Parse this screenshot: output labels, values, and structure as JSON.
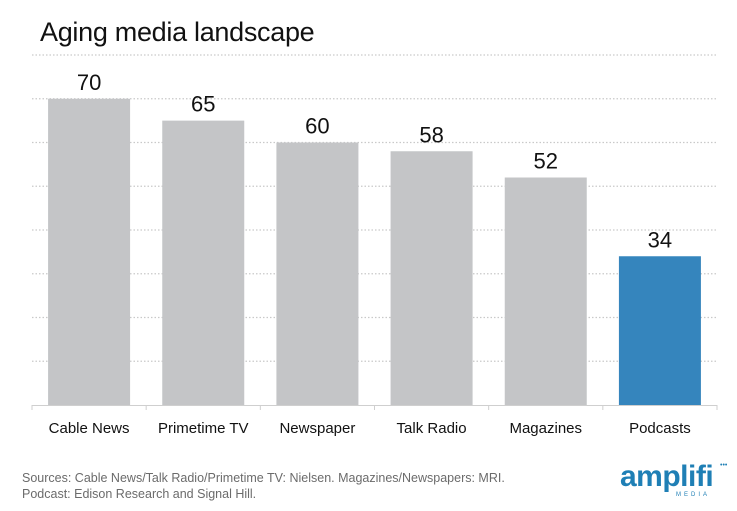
{
  "chart_data": {
    "type": "bar",
    "title": "Aging media landscape",
    "categories": [
      "Cable News",
      "Primetime TV",
      "Newspaper",
      "Talk Radio",
      "Magazines",
      "Podcasts"
    ],
    "values": [
      70,
      65,
      60,
      58,
      52,
      34
    ],
    "colors": [
      "#c4c5c7",
      "#c4c5c7",
      "#c4c5c7",
      "#c4c5c7",
      "#c4c5c7",
      "#3585bd"
    ],
    "xlabel": "",
    "ylabel": "",
    "ylim": [
      0,
      80
    ],
    "grid": true,
    "grid_step": 10,
    "data_labels": [
      "70",
      "65",
      "60",
      "58",
      "52",
      "34"
    ],
    "legend": "none"
  },
  "footer": {
    "source_line1": "Sources: Cable News/Talk Radio/Primetime TV: Nielsen. Magazines/Newspapers: MRI.",
    "source_line2": "Podcast: Edison Research and Signal Hill."
  },
  "logo": {
    "word": "amplifi",
    "sub": "MEDIA"
  }
}
